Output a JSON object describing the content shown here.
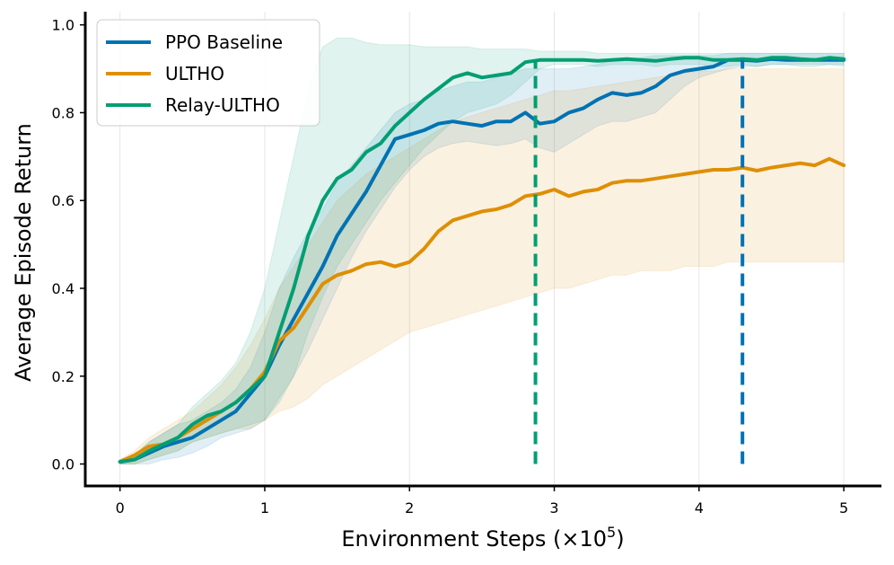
{
  "chart_data": {
    "type": "line",
    "title": "",
    "xlabel": "Environment Steps (×10",
    "xlabel_sup": "5",
    "xlabel_close": ")",
    "ylabel": "Average Episode Return",
    "xlim": [
      -0.24,
      5.26
    ],
    "ylim": [
      -0.05,
      1.03
    ],
    "xticks": [
      0,
      1,
      2,
      3,
      4,
      5
    ],
    "xtick_labels": [
      "0",
      "1",
      "2",
      "3",
      "4",
      "5"
    ],
    "yticks": [
      0.0,
      0.2,
      0.4,
      0.6,
      0.8,
      1.0
    ],
    "ytick_labels": [
      "0.0",
      "0.2",
      "0.4",
      "0.6",
      "0.8",
      "1.0"
    ],
    "grid": "vertical",
    "legend_position": "top-left",
    "series": [
      {
        "name": "PPO Baseline",
        "color": "#0072b2",
        "x": [
          0,
          0.1,
          0.2,
          0.3,
          0.4,
          0.5,
          0.6,
          0.7,
          0.8,
          0.9,
          1.0,
          1.1,
          1.2,
          1.3,
          1.4,
          1.5,
          1.6,
          1.7,
          1.8,
          1.9,
          2.0,
          2.1,
          2.2,
          2.3,
          2.4,
          2.5,
          2.6,
          2.7,
          2.8,
          2.9,
          3.0,
          3.1,
          3.2,
          3.3,
          3.4,
          3.5,
          3.6,
          3.7,
          3.8,
          3.9,
          4.0,
          4.1,
          4.2,
          4.3,
          4.4,
          4.5,
          4.6,
          4.7,
          4.8,
          4.9,
          5.0
        ],
        "y": [
          0.005,
          0.01,
          0.025,
          0.04,
          0.05,
          0.06,
          0.08,
          0.1,
          0.12,
          0.16,
          0.2,
          0.27,
          0.33,
          0.39,
          0.45,
          0.52,
          0.57,
          0.62,
          0.68,
          0.74,
          0.75,
          0.76,
          0.775,
          0.78,
          0.775,
          0.77,
          0.78,
          0.78,
          0.8,
          0.775,
          0.78,
          0.8,
          0.81,
          0.83,
          0.845,
          0.84,
          0.845,
          0.86,
          0.885,
          0.895,
          0.9,
          0.905,
          0.92,
          0.92,
          0.918,
          0.922,
          0.92,
          0.92,
          0.92,
          0.92,
          0.92
        ],
        "lower": [
          0,
          0.0,
          0.0,
          0.01,
          0.015,
          0.025,
          0.04,
          0.06,
          0.07,
          0.08,
          0.1,
          0.15,
          0.2,
          0.26,
          0.33,
          0.4,
          0.47,
          0.53,
          0.58,
          0.63,
          0.67,
          0.7,
          0.72,
          0.73,
          0.735,
          0.73,
          0.725,
          0.73,
          0.74,
          0.72,
          0.71,
          0.73,
          0.75,
          0.77,
          0.78,
          0.78,
          0.79,
          0.8,
          0.83,
          0.86,
          0.88,
          0.89,
          0.9,
          0.905,
          0.905,
          0.91,
          0.91,
          0.91,
          0.91,
          0.91,
          0.91
        ],
        "upper": [
          0.01,
          0.02,
          0.05,
          0.07,
          0.09,
          0.1,
          0.12,
          0.14,
          0.17,
          0.22,
          0.3,
          0.4,
          0.47,
          0.53,
          0.58,
          0.64,
          0.68,
          0.72,
          0.76,
          0.8,
          0.82,
          0.83,
          0.85,
          0.86,
          0.87,
          0.87,
          0.88,
          0.89,
          0.9,
          0.9,
          0.9,
          0.9,
          0.905,
          0.91,
          0.92,
          0.92,
          0.925,
          0.93,
          0.93,
          0.93,
          0.93,
          0.93,
          0.935,
          0.935,
          0.935,
          0.935,
          0.935,
          0.935,
          0.935,
          0.935,
          0.935
        ],
        "vline_x": 4.3
      },
      {
        "name": "ULTHO",
        "color": "#de8f05",
        "x": [
          0,
          0.1,
          0.2,
          0.3,
          0.4,
          0.5,
          0.6,
          0.7,
          0.8,
          0.9,
          1.0,
          1.1,
          1.2,
          1.3,
          1.4,
          1.5,
          1.6,
          1.7,
          1.8,
          1.9,
          2.0,
          2.1,
          2.2,
          2.3,
          2.4,
          2.5,
          2.6,
          2.7,
          2.8,
          2.9,
          3.0,
          3.1,
          3.2,
          3.3,
          3.4,
          3.5,
          3.6,
          3.7,
          3.8,
          3.9,
          4.0,
          4.1,
          4.2,
          4.3,
          4.4,
          4.5,
          4.6,
          4.7,
          4.8,
          4.9,
          5.0
        ],
        "y": [
          0.005,
          0.02,
          0.04,
          0.045,
          0.06,
          0.08,
          0.1,
          0.12,
          0.14,
          0.17,
          0.21,
          0.28,
          0.31,
          0.36,
          0.41,
          0.43,
          0.44,
          0.455,
          0.46,
          0.45,
          0.46,
          0.49,
          0.53,
          0.555,
          0.565,
          0.575,
          0.58,
          0.59,
          0.61,
          0.615,
          0.625,
          0.61,
          0.62,
          0.625,
          0.64,
          0.645,
          0.645,
          0.65,
          0.655,
          0.66,
          0.665,
          0.67,
          0.67,
          0.675,
          0.668,
          0.675,
          0.68,
          0.685,
          0.68,
          0.695,
          0.68
        ],
        "lower": [
          0,
          0.0,
          0.01,
          0.02,
          0.03,
          0.05,
          0.06,
          0.07,
          0.08,
          0.08,
          0.1,
          0.12,
          0.13,
          0.15,
          0.18,
          0.2,
          0.22,
          0.24,
          0.26,
          0.28,
          0.3,
          0.31,
          0.32,
          0.33,
          0.34,
          0.35,
          0.36,
          0.37,
          0.38,
          0.39,
          0.4,
          0.4,
          0.41,
          0.42,
          0.43,
          0.43,
          0.44,
          0.44,
          0.44,
          0.45,
          0.45,
          0.45,
          0.46,
          0.46,
          0.46,
          0.46,
          0.46,
          0.46,
          0.46,
          0.46,
          0.46
        ],
        "upper": [
          0.01,
          0.03,
          0.06,
          0.08,
          0.1,
          0.12,
          0.15,
          0.18,
          0.22,
          0.27,
          0.33,
          0.4,
          0.45,
          0.5,
          0.55,
          0.6,
          0.63,
          0.66,
          0.68,
          0.7,
          0.72,
          0.74,
          0.76,
          0.78,
          0.79,
          0.8,
          0.81,
          0.82,
          0.83,
          0.84,
          0.85,
          0.85,
          0.855,
          0.86,
          0.865,
          0.87,
          0.875,
          0.88,
          0.885,
          0.89,
          0.895,
          0.895,
          0.9,
          0.9,
          0.9,
          0.9,
          0.9,
          0.9,
          0.9,
          0.9,
          0.9
        ]
      },
      {
        "name": "Relay-ULTHO",
        "color": "#029e73",
        "x": [
          0,
          0.1,
          0.2,
          0.3,
          0.4,
          0.5,
          0.6,
          0.7,
          0.8,
          0.9,
          1.0,
          1.1,
          1.2,
          1.3,
          1.4,
          1.5,
          1.6,
          1.7,
          1.8,
          1.9,
          2.0,
          2.1,
          2.2,
          2.3,
          2.4,
          2.5,
          2.6,
          2.7,
          2.8,
          2.9,
          3.0,
          3.1,
          3.2,
          3.3,
          3.4,
          3.5,
          3.6,
          3.7,
          3.8,
          3.9,
          4.0,
          4.1,
          4.2,
          4.3,
          4.4,
          4.5,
          4.6,
          4.7,
          4.8,
          4.9,
          5.0
        ],
        "y": [
          0.005,
          0.01,
          0.03,
          0.045,
          0.06,
          0.09,
          0.11,
          0.12,
          0.14,
          0.17,
          0.2,
          0.3,
          0.4,
          0.52,
          0.6,
          0.65,
          0.67,
          0.71,
          0.73,
          0.77,
          0.8,
          0.83,
          0.855,
          0.88,
          0.89,
          0.88,
          0.885,
          0.89,
          0.915,
          0.92,
          0.92,
          0.92,
          0.92,
          0.918,
          0.92,
          0.922,
          0.92,
          0.918,
          0.922,
          0.925,
          0.925,
          0.92,
          0.92,
          0.922,
          0.92,
          0.925,
          0.925,
          0.922,
          0.92,
          0.925,
          0.922
        ],
        "lower": [
          0,
          0.0,
          0.01,
          0.02,
          0.03,
          0.05,
          0.06,
          0.07,
          0.08,
          0.09,
          0.1,
          0.14,
          0.2,
          0.3,
          0.38,
          0.45,
          0.5,
          0.55,
          0.6,
          0.64,
          0.68,
          0.72,
          0.75,
          0.78,
          0.8,
          0.81,
          0.82,
          0.84,
          0.87,
          0.9,
          0.91,
          0.91,
          0.91,
          0.905,
          0.91,
          0.91,
          0.91,
          0.905,
          0.91,
          0.91,
          0.91,
          0.905,
          0.905,
          0.91,
          0.905,
          0.91,
          0.91,
          0.905,
          0.905,
          0.91,
          0.905
        ],
        "upper": [
          0.01,
          0.02,
          0.05,
          0.07,
          0.09,
          0.13,
          0.16,
          0.19,
          0.23,
          0.3,
          0.4,
          0.55,
          0.7,
          0.85,
          0.95,
          0.97,
          0.97,
          0.96,
          0.955,
          0.955,
          0.955,
          0.95,
          0.95,
          0.95,
          0.95,
          0.945,
          0.945,
          0.945,
          0.945,
          0.94,
          0.94,
          0.94,
          0.94,
          0.935,
          0.935,
          0.935,
          0.935,
          0.935,
          0.935,
          0.935,
          0.935,
          0.935,
          0.935,
          0.935,
          0.935,
          0.935,
          0.935,
          0.935,
          0.935,
          0.935,
          0.935
        ],
        "vline_x": 2.87
      }
    ]
  }
}
